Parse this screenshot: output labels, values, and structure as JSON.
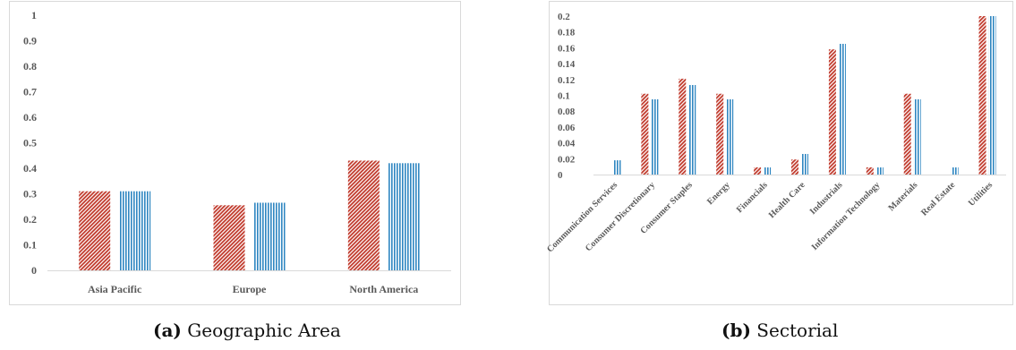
{
  "chart_data": [
    {
      "type": "bar",
      "categories": [
        "Asia Pacific",
        "Europe",
        "North America"
      ],
      "series": [
        {
          "values": [
            0.31,
            0.255,
            0.43
          ],
          "color": "#c0392b",
          "pattern": "diagonal-hatch"
        },
        {
          "values": [
            0.31,
            0.265,
            0.42
          ],
          "color": "#2e86c1",
          "pattern": "vertical-lines"
        }
      ],
      "yticks": [
        "0",
        "0.1",
        "0.2",
        "0.3",
        "0.4",
        "0.5",
        "0.6",
        "0.7",
        "0.8",
        "0.9",
        "1"
      ],
      "ylim": [
        0,
        1
      ],
      "grid": false,
      "legend": "none"
    },
    {
      "type": "bar",
      "categories": [
        "Communication Services",
        "Consumer Discretionary",
        "Consumer Staples",
        "Energy",
        "Financials",
        "Health Care",
        "Industrials",
        "Information Technology",
        "Materials",
        "Real Estate",
        "Utilities"
      ],
      "series": [
        {
          "values": [
            0,
            0.102,
            0.121,
            0.102,
            0.009,
            0.019,
            0.158,
            0.009,
            0.102,
            0,
            0.2
          ],
          "color": "#c0392b",
          "pattern": "diagonal-hatch"
        },
        {
          "values": [
            0.018,
            0.095,
            0.113,
            0.095,
            0.009,
            0.026,
            0.165,
            0.009,
            0.095,
            0.009,
            0.2
          ],
          "color": "#2e86c1",
          "pattern": "vertical-lines"
        }
      ],
      "yticks": [
        "0",
        "0.02",
        "0.04",
        "0.06",
        "0.08",
        "0.1",
        "0.12",
        "0.14",
        "0.16",
        "0.18",
        "0.2"
      ],
      "ylim": [
        0,
        0.2
      ],
      "grid": false,
      "legend": "none"
    }
  ],
  "captions": [
    {
      "letter": "(a)",
      "text": "Geographic Area"
    },
    {
      "letter": "(b)",
      "text": "Sectorial"
    }
  ]
}
